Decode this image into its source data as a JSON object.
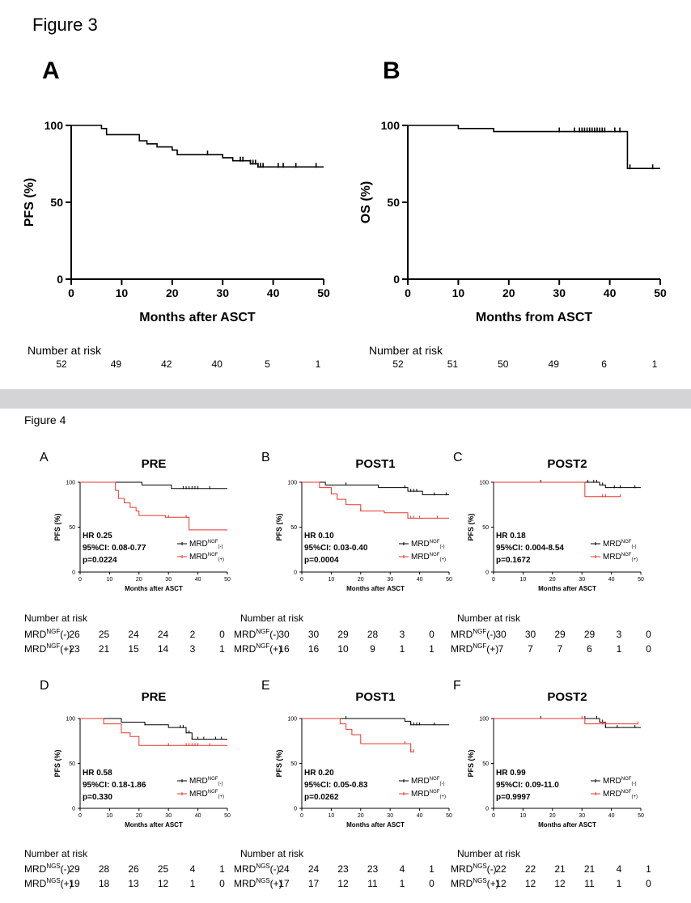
{
  "figure3": {
    "title": "Figure 3",
    "risk_title": "Number at risk",
    "panels": [
      {
        "letter": "A",
        "ylabel": "PFS (%)",
        "xlabel": "Months after ASCT",
        "xticks": [
          "0",
          "10",
          "20",
          "30",
          "40",
          "50"
        ],
        "yticks": [
          "0",
          "50",
          "100"
        ],
        "risk": [
          "52",
          "49",
          "42",
          "40",
          "5",
          "1"
        ]
      },
      {
        "letter": "B",
        "ylabel": "OS (%)",
        "xlabel": "Months from ASCT",
        "xticks": [
          "0",
          "10",
          "20",
          "30",
          "40",
          "50"
        ],
        "yticks": [
          "0",
          "50",
          "100"
        ],
        "risk": [
          "52",
          "51",
          "50",
          "49",
          "6",
          "1"
        ]
      }
    ]
  },
  "figure4": {
    "title": "Figure 4",
    "risk_title": "Number at risk",
    "panels": [
      {
        "letter": "A",
        "title": "PRE",
        "ylabel": "PFS (%)",
        "xlabel": "Months after ASCT",
        "xticks": [
          "0",
          "10",
          "20",
          "30",
          "40",
          "50"
        ],
        "yticks": [
          "0",
          "50",
          "100"
        ],
        "stats": [
          "HR 0.25",
          "95%CI: 0.08-0.77",
          "p=0.0224"
        ],
        "legend": [
          "MRD",
          "NGF",
          "(-)",
          "(+)"
        ],
        "risk_rows": [
          {
            "label": "MRD",
            "sup": "NGF",
            "suffix": "(-)",
            "values": [
              "26",
              "25",
              "24",
              "24",
              "2",
              "0"
            ]
          },
          {
            "label": "MRD",
            "sup": "NGF",
            "suffix": "(+)",
            "values": [
              "23",
              "21",
              "15",
              "14",
              "3",
              "1"
            ]
          }
        ]
      },
      {
        "letter": "B",
        "title": "POST1",
        "ylabel": "PFS (%)",
        "xlabel": "Months after ASCT",
        "xticks": [
          "0",
          "10",
          "20",
          "30",
          "40",
          "50"
        ],
        "yticks": [
          "0",
          "50",
          "100"
        ],
        "stats": [
          "HR 0.10",
          "95%CI: 0.03-0.40",
          "p=0.0004"
        ],
        "legend": [
          "MRD",
          "NGF",
          "(-)",
          "(+)"
        ],
        "risk_rows": [
          {
            "label": "MRD",
            "sup": "NGF",
            "suffix": "(-)",
            "values": [
              "30",
              "30",
              "29",
              "28",
              "3",
              "0"
            ]
          },
          {
            "label": "MRD",
            "sup": "NGF",
            "suffix": "(+)",
            "values": [
              "16",
              "16",
              "10",
              "9",
              "1",
              "1"
            ]
          }
        ]
      },
      {
        "letter": "C",
        "title": "POST2",
        "ylabel": "PFS (%)",
        "xlabel": "Months after ASCT",
        "xticks": [
          "0",
          "10",
          "20",
          "30",
          "40",
          "50"
        ],
        "yticks": [
          "0",
          "50",
          "100"
        ],
        "stats": [
          "HR 0.18",
          "95%CI: 0.004-8.54",
          "p=0.1672"
        ],
        "legend": [
          "MRD",
          "NGF",
          "(-)",
          "(+)"
        ],
        "risk_rows": [
          {
            "label": "MRD",
            "sup": "NGF",
            "suffix": "(-)",
            "values": [
              "30",
              "30",
              "29",
              "29",
              "3",
              "0"
            ]
          },
          {
            "label": "MRD",
            "sup": "NGF",
            "suffix": "(+)",
            "values": [
              "7",
              "7",
              "7",
              "6",
              "1",
              "0"
            ]
          }
        ]
      },
      {
        "letter": "D",
        "title": "PRE",
        "ylabel": "PFS (%)",
        "xlabel": "Months after ASCT",
        "xticks": [
          "0",
          "10",
          "20",
          "30",
          "40",
          "50"
        ],
        "yticks": [
          "0",
          "50",
          "100"
        ],
        "stats": [
          "HR 0.58",
          "95%CI: 0.18-1.86",
          "p=0.330"
        ],
        "legend": [
          "MRD",
          "NGF",
          "(-)",
          "(+)"
        ],
        "risk_rows": [
          {
            "label": "MRD",
            "sup": "NGS",
            "suffix": "(-)",
            "values": [
              "29",
              "28",
              "26",
              "25",
              "4",
              "1"
            ]
          },
          {
            "label": "MRD",
            "sup": "NGS",
            "suffix": "(+)",
            "values": [
              "19",
              "18",
              "13",
              "12",
              "1",
              "0"
            ]
          }
        ]
      },
      {
        "letter": "E",
        "title": "POST1",
        "ylabel": "PFS (%)",
        "xlabel": "Months after ASCT",
        "xticks": [
          "0",
          "10",
          "20",
          "30",
          "40",
          "50"
        ],
        "yticks": [
          "0",
          "50",
          "100"
        ],
        "stats": [
          "HR 0.20",
          "95%CI: 0.05-0.83",
          "p=0.0262"
        ],
        "legend": [
          "MRD",
          "NGF",
          "(-)",
          "(+)"
        ],
        "risk_rows": [
          {
            "label": "MRD",
            "sup": "NGS",
            "suffix": "(-)",
            "values": [
              "24",
              "24",
              "23",
              "23",
              "4",
              "1"
            ]
          },
          {
            "label": "MRD",
            "sup": "NGS",
            "suffix": "(+)",
            "values": [
              "17",
              "17",
              "12",
              "11",
              "1",
              "0"
            ]
          }
        ]
      },
      {
        "letter": "F",
        "title": "POST2",
        "ylabel": "PFS (%)",
        "xlabel": "Months after ASCT",
        "xticks": [
          "0",
          "10",
          "20",
          "30",
          "40",
          "50"
        ],
        "yticks": [
          "0",
          "50",
          "100"
        ],
        "stats": [
          "HR 0.99",
          "95%CI: 0.09-11.0",
          "p=0.9997"
        ],
        "legend": [
          "MRD",
          "NGF",
          "(-)",
          "(+)"
        ],
        "risk_rows": [
          {
            "label": "MRD",
            "sup": "NGS",
            "suffix": "(-)",
            "values": [
              "22",
              "22",
              "21",
              "21",
              "4",
              "1"
            ]
          },
          {
            "label": "MRD",
            "sup": "NGS",
            "suffix": "(+)",
            "values": [
              "12",
              "12",
              "12",
              "11",
              "1",
              "0"
            ]
          }
        ]
      }
    ]
  },
  "colors": {
    "negative": "#000000",
    "positive": "#e8352a",
    "band": "#d4d4d6"
  },
  "chart_data": [
    {
      "type": "line",
      "panel": "3A",
      "xlim": [
        0,
        50
      ],
      "ylim": [
        0,
        100
      ],
      "series": [
        {
          "x": [
            0,
            6,
            7,
            13,
            13.5,
            15,
            17,
            20,
            21,
            30,
            32,
            35,
            35.5,
            36,
            37,
            38,
            50
          ],
          "y": [
            100,
            98,
            94,
            94,
            90,
            88,
            86,
            84,
            81,
            79,
            77,
            77,
            75,
            75,
            73,
            73,
            73
          ],
          "censor": [
            27,
            33.5,
            34,
            35.5,
            36,
            36.5,
            37,
            37.5,
            38,
            41,
            42,
            44.5,
            48.5
          ]
        }
      ]
    },
    {
      "type": "line",
      "panel": "3B",
      "xlim": [
        0,
        50
      ],
      "ylim": [
        0,
        100
      ],
      "series": [
        {
          "x": [
            0,
            10,
            17,
            43,
            43.5,
            50
          ],
          "y": [
            100,
            98,
            96,
            96,
            72,
            72
          ],
          "censor": [
            30,
            33,
            34,
            34.5,
            35,
            35.5,
            36,
            36.5,
            37,
            37.5,
            38,
            38.5,
            39,
            41,
            42,
            44,
            48.5
          ]
        }
      ]
    },
    {
      "type": "line",
      "panel": "4A",
      "xlim": [
        0,
        50
      ],
      "ylim": [
        0,
        100
      ],
      "series": [
        {
          "name": "MRD NGF (-)",
          "x": [
            0,
            21,
            31,
            50
          ],
          "y": [
            100,
            97,
            93,
            93
          ],
          "censor": [
            35,
            36,
            37,
            38,
            39,
            40,
            44
          ]
        },
        {
          "name": "MRD NGF (+)",
          "x": [
            0,
            12,
            13,
            15,
            17,
            19,
            20,
            29,
            37,
            50
          ],
          "y": [
            100,
            91,
            82,
            77,
            72,
            68,
            63,
            61,
            47,
            47
          ],
          "censor": [
            30,
            36
          ]
        }
      ]
    },
    {
      "type": "line",
      "panel": "4B",
      "xlim": [
        0,
        50
      ],
      "ylim": [
        0,
        100
      ],
      "series": [
        {
          "name": "MRD NGF (-)",
          "x": [
            0,
            8,
            26,
            36,
            41,
            50
          ],
          "y": [
            100,
            97,
            94,
            90,
            86,
            86
          ],
          "censor": [
            15,
            35,
            37,
            38,
            39,
            45,
            49
          ]
        },
        {
          "name": "MRD NGF (+)",
          "x": [
            0,
            6,
            10,
            12,
            15,
            20,
            28,
            36,
            50
          ],
          "y": [
            100,
            94,
            87,
            81,
            75,
            68,
            66,
            60,
            60
          ],
          "censor": [
            20,
            36,
            37,
            38,
            40,
            46
          ]
        }
      ]
    },
    {
      "type": "line",
      "panel": "4C",
      "xlim": [
        0,
        50
      ],
      "ylim": [
        0,
        100
      ],
      "series": [
        {
          "name": "MRD NGF (-)",
          "x": [
            0,
            36,
            38,
            50
          ],
          "y": [
            100,
            97,
            94,
            94
          ],
          "censor": [
            16,
            32,
            34,
            35,
            36,
            37,
            41,
            43,
            48
          ]
        },
        {
          "name": "MRD NGF (+)",
          "x": [
            0,
            30,
            31,
            43
          ],
          "y": [
            100,
            100,
            84,
            84
          ],
          "censor": [
            37,
            38,
            43
          ]
        }
      ]
    },
    {
      "type": "line",
      "panel": "4D",
      "xlim": [
        0,
        50
      ],
      "ylim": [
        0,
        100
      ],
      "series": [
        {
          "name": "MRD NGS (-)",
          "x": [
            0,
            14,
            22,
            30,
            36,
            38,
            50
          ],
          "y": [
            100,
            96,
            93,
            90,
            84,
            77,
            77
          ],
          "censor": [
            22,
            34,
            35,
            36,
            37,
            38,
            40,
            42,
            46,
            48
          ]
        },
        {
          "name": "MRD NGS (+)",
          "x": [
            0,
            8,
            14,
            17,
            20,
            50
          ],
          "y": [
            100,
            94,
            84,
            80,
            70,
            70
          ],
          "censor": [
            30,
            36,
            37,
            38,
            39,
            40,
            44
          ]
        }
      ]
    },
    {
      "type": "line",
      "panel": "4E",
      "xlim": [
        0,
        50
      ],
      "ylim": [
        0,
        100
      ],
      "series": [
        {
          "name": "MRD NGS (-)",
          "x": [
            0,
            35,
            37,
            50
          ],
          "y": [
            100,
            97,
            93,
            93
          ],
          "censor": [
            15,
            37,
            38,
            39,
            40,
            45
          ]
        },
        {
          "name": "MRD NGS (+)",
          "x": [
            0,
            13,
            15,
            17,
            20,
            37,
            38
          ],
          "y": [
            100,
            94,
            88,
            82,
            72,
            63,
            63
          ],
          "censor": [
            35,
            37,
            38
          ]
        }
      ]
    },
    {
      "type": "line",
      "panel": "4F",
      "xlim": [
        0,
        50
      ],
      "ylim": [
        0,
        100
      ],
      "series": [
        {
          "name": "MRD NGS (-)",
          "x": [
            0,
            36,
            38,
            50
          ],
          "y": [
            100,
            96,
            90,
            90
          ],
          "censor": [
            16,
            31,
            35,
            36,
            37,
            38,
            42,
            48
          ]
        },
        {
          "name": "MRD NGS (+)",
          "x": [
            0,
            31,
            49
          ],
          "y": [
            100,
            94,
            94
          ],
          "censor": [
            30,
            37,
            38,
            49
          ]
        }
      ]
    }
  ]
}
